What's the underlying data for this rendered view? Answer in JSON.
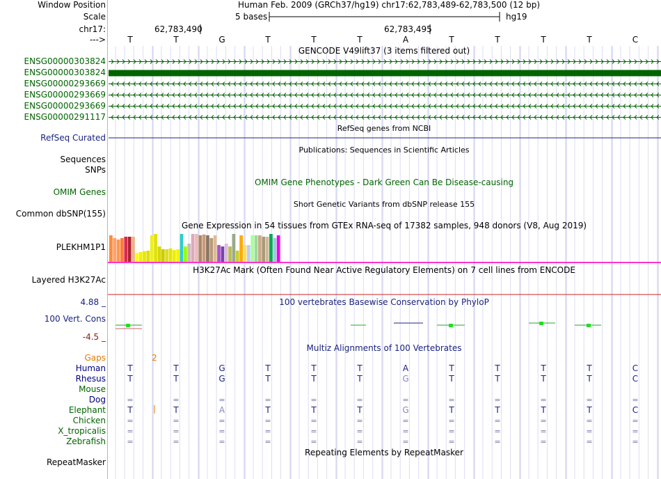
{
  "window_position": {
    "label": "Window Position",
    "value": "Human Feb. 2009 (GRCh37/hg19)   chr17:62,783,489-62,783,500 (12 bp)"
  },
  "scale": {
    "label": "Scale",
    "bases": "5 bases",
    "assembly": "hg19"
  },
  "coords": {
    "label": "chr17:",
    "pos1": "62,783,490",
    "pos2": "62,783,495"
  },
  "strand_label": "--->",
  "sequence": [
    "T",
    "T",
    "G",
    "T",
    "T",
    "T",
    "A",
    "T",
    "T",
    "T",
    "T",
    "C"
  ],
  "gencode": {
    "title": "GENCODE V49lift37 (3 items filtered out)",
    "items": [
      {
        "id": "ENSG00000303824",
        "dir": "right"
      },
      {
        "id": "ENSG00000303824",
        "dir": "block"
      },
      {
        "id": "ENSG00000293669",
        "dir": "left"
      },
      {
        "id": "ENSG00000293669",
        "dir": "left"
      },
      {
        "id": "ENSG00000293669",
        "dir": "left"
      },
      {
        "id": "ENSG00000291117",
        "dir": "left"
      }
    ]
  },
  "refseq": {
    "title": "RefSeq genes from NCBI",
    "label": "RefSeq Curated"
  },
  "publications": {
    "title": "Publications: Sequences in Scientific Articles",
    "label1": "Sequences",
    "label2": "SNPs"
  },
  "omim": {
    "title": "OMIM Gene Phenotypes - Dark Green Can Be Disease-causing",
    "label": "OMIM Genes"
  },
  "dbsnp": {
    "title": "Short Genetic Variants from dbSNP release 155",
    "label": "Common dbSNP(155)"
  },
  "gtex": {
    "title": "Gene Expression in 54 tissues from GTEx RNA-seq of 17382 samples, 948 donors (V8, Aug 2019)",
    "label": "PLEKHM1P1",
    "bars": [
      {
        "color": "#ff8c3c",
        "value": 0.95
      },
      {
        "color": "#ffa06e",
        "value": 0.85
      },
      {
        "color": "#ff9650",
        "value": 0.8
      },
      {
        "color": "#ff7a3a",
        "value": 0.85
      },
      {
        "color": "#d82a4a",
        "value": 0.9
      },
      {
        "color": "#b02030",
        "value": 0.9
      },
      {
        "color": "#e8b48c",
        "value": 0.9
      },
      {
        "color": "#ffff00",
        "value": 0.32
      },
      {
        "color": "#f0f000",
        "value": 0.35
      },
      {
        "color": "#e8e800",
        "value": 0.38
      },
      {
        "color": "#dede00",
        "value": 0.4
      },
      {
        "color": "#eeee20",
        "value": 0.95
      },
      {
        "color": "#e0e010",
        "value": 1.0
      },
      {
        "color": "#d8d800",
        "value": 0.55
      },
      {
        "color": "#cccc00",
        "value": 0.45
      },
      {
        "color": "#dddd20",
        "value": 0.45
      },
      {
        "color": "#e4e400",
        "value": 0.48
      },
      {
        "color": "#eded00",
        "value": 0.42
      },
      {
        "color": "#f4f400",
        "value": 0.45
      },
      {
        "color": "#33cccc",
        "value": 1.0
      },
      {
        "color": "#99ff00",
        "value": 0.55
      },
      {
        "color": "#ccbbbb",
        "value": 0.65
      },
      {
        "color": "#ddaabb",
        "value": 1.0
      },
      {
        "color": "#eebbbb",
        "value": 1.0
      },
      {
        "color": "#aa8866",
        "value": 0.95
      },
      {
        "color": "#cc9977",
        "value": 0.98
      },
      {
        "color": "#887766",
        "value": 0.95
      },
      {
        "color": "#bb9977",
        "value": 0.85
      },
      {
        "color": "#ddbb99",
        "value": 0.95
      },
      {
        "color": "#aa55cc",
        "value": 0.6
      },
      {
        "color": "#7744aa",
        "value": 0.55
      },
      {
        "color": "#ddbbdd",
        "value": 0.65
      },
      {
        "color": "#bbbb55",
        "value": 0.55
      },
      {
        "color": "#99aa88",
        "value": 1.0
      },
      {
        "color": "#cccc33",
        "value": 0.4
      },
      {
        "color": "#ffaa00",
        "value": 0.95
      },
      {
        "color": "#ffdd66",
        "value": 0.6
      },
      {
        "color": "#bbccff",
        "value": 0.6
      },
      {
        "color": "#aaff99",
        "value": 0.95
      },
      {
        "color": "#99dd99",
        "value": 0.95
      },
      {
        "color": "#ccaa88",
        "value": 0.95
      },
      {
        "color": "#aa9977",
        "value": 0.9
      },
      {
        "color": "#ccbb99",
        "value": 0.9
      },
      {
        "color": "#00aa55",
        "value": 1.0
      },
      {
        "color": "#99ccdd",
        "value": 0.85
      },
      {
        "color": "#ee00ee",
        "value": 0.95
      }
    ]
  },
  "h3k27ac": {
    "title": "H3K27Ac Mark (Often Found Near Active Regulatory Elements) on 7 cell lines from ENCODE",
    "label": "Layered H3K27Ac"
  },
  "phylop": {
    "title": "100 vertebrates Basewise Conservation by PhyloP",
    "label": "100 Vert. Cons",
    "max": "4.88 _",
    "min": "-4.5 _"
  },
  "multiz": {
    "title": "Multiz Alignments of 100 Vertebrates",
    "gaps_label": "Gaps",
    "gaps_value": "2",
    "species": [
      {
        "name": "Human",
        "color": "#000080",
        "bases": [
          "T",
          "T",
          "G",
          "T",
          "T",
          "T",
          "A",
          "T",
          "T",
          "T",
          "T",
          "C"
        ]
      },
      {
        "name": "Rhesus",
        "color": "#000080",
        "bases": [
          "T",
          "T",
          "G",
          "T",
          "T",
          "T",
          "G",
          "T",
          "T",
          "T",
          "T",
          "C"
        ]
      },
      {
        "name": "Mouse",
        "color": "#006400",
        "bases": [
          "",
          "",
          "",
          "",
          "",
          "",
          "",
          "",
          "",
          "",
          "",
          ""
        ]
      },
      {
        "name": "Dog",
        "color": "#000080",
        "bases": [
          "=",
          "=",
          "=",
          "=",
          "=",
          "=",
          "=",
          "=",
          "=",
          "=",
          "=",
          "="
        ]
      },
      {
        "name": "Elephant",
        "color": "#006400",
        "bases": [
          "T",
          "T",
          "A",
          "T",
          "T",
          "T",
          "G",
          "T",
          "T",
          "T",
          "T",
          "C"
        ]
      },
      {
        "name": "Chicken",
        "color": "#006400",
        "bases": [
          "=",
          "=",
          "=",
          "=",
          "=",
          "=",
          "=",
          "=",
          "=",
          "=",
          "=",
          "="
        ]
      },
      {
        "name": "X_tropicalis",
        "color": "#006400",
        "bases": [
          "=",
          "=",
          "=",
          "=",
          "=",
          "=",
          "=",
          "=",
          "=",
          "=",
          "=",
          "="
        ]
      },
      {
        "name": "Zebrafish",
        "color": "#006400",
        "bases": [
          "=",
          "=",
          "=",
          "=",
          "=",
          "=",
          "=",
          "=",
          "=",
          "=",
          "=",
          "="
        ]
      }
    ]
  },
  "repeatmasker": {
    "title": "Repeating Elements by RepeatMasker",
    "label": "RepeatMasker"
  },
  "colors": {
    "gencode_green": "#006400",
    "label_navy": "#1a237e",
    "gap_orange": "#e07b00",
    "conservation_green": "#22dd22",
    "divider_pink": "#ff33cc"
  }
}
